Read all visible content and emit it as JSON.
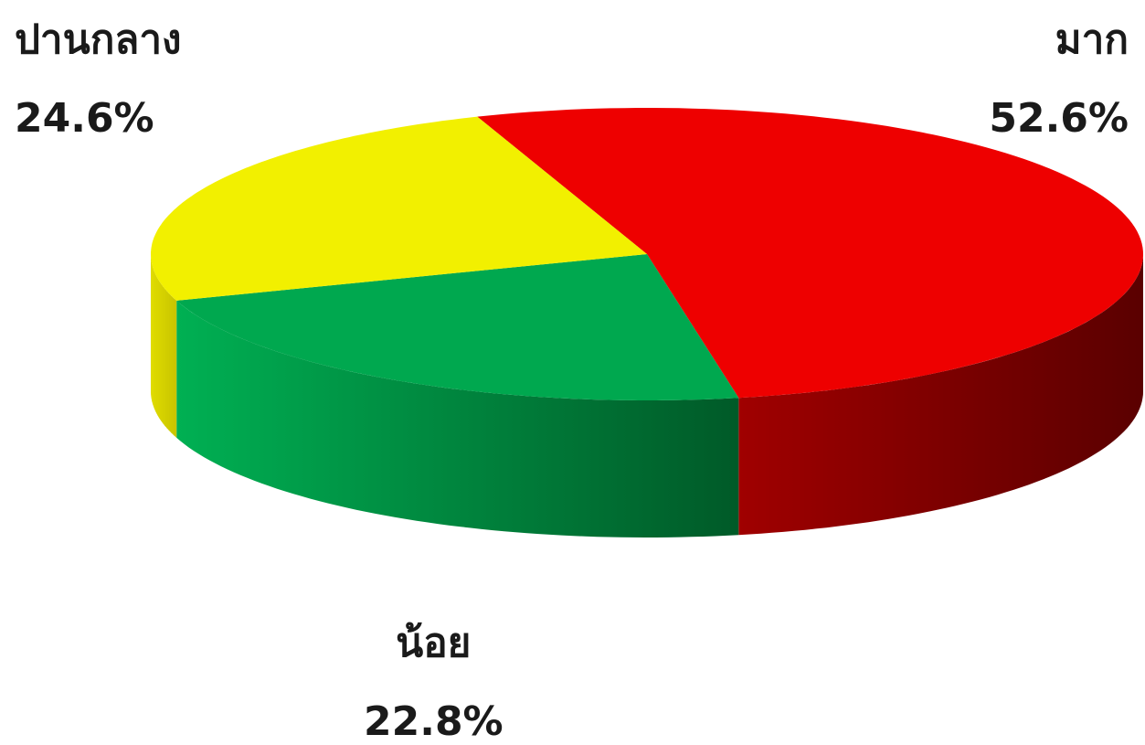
{
  "chart_data": {
    "type": "pie",
    "style": "3d",
    "title": "",
    "slices": [
      {
        "label": "มาก",
        "value": 52.6,
        "value_label": "52.6%",
        "color": "#ee0000",
        "side_color": "#8b0000"
      },
      {
        "label": "น้อย",
        "value": 22.8,
        "value_label": "22.8%",
        "color": "#00a84f",
        "side_color": "#007a39"
      },
      {
        "label": "ปานกลาง",
        "value": 24.6,
        "value_label": "24.6%",
        "color": "#f2f000",
        "side_color": "#c9c500"
      }
    ]
  }
}
